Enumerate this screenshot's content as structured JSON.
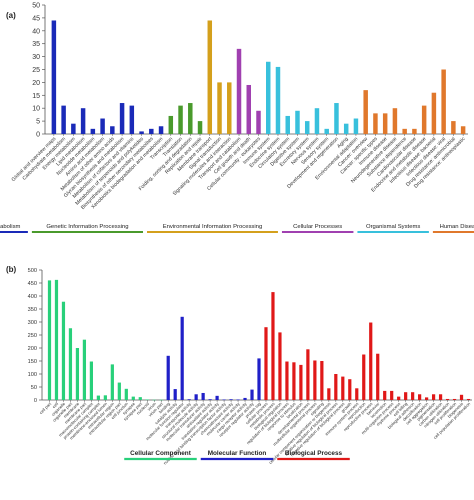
{
  "chart_data": [
    {
      "panel_label": "(a)",
      "type": "bar",
      "ylim": [
        0,
        50
      ],
      "yticks": [
        0,
        5,
        10,
        15,
        20,
        25,
        30,
        35,
        40,
        45,
        50
      ],
      "grid": false,
      "legend_position": "bottom",
      "groups": [
        {
          "name": "Metabolism",
          "color": "#1a2ab8",
          "items": [
            {
              "label": "Global and overview maps",
              "value": 44
            },
            {
              "label": "Carbohydrate metabolism",
              "value": 11
            },
            {
              "label": "Energy metabolism",
              "value": 4
            },
            {
              "label": "Lipid metabolism",
              "value": 10
            },
            {
              "label": "Nucleotide metabolism",
              "value": 2
            },
            {
              "label": "Amino acid metabolism",
              "value": 6
            },
            {
              "label": "Metabolism of other amino acids",
              "value": 3
            },
            {
              "label": "Glycan biosynthesis and metabolism",
              "value": 12
            },
            {
              "label": "Metabolism of cofactors and vitamins",
              "value": 11
            },
            {
              "label": "Metabolism of terpenoids and polyketides",
              "value": 1
            },
            {
              "label": "Biosynthesis of other secondary metabolites",
              "value": 2
            },
            {
              "label": "Xenobiotics biodegradation and metabolism",
              "value": 3
            }
          ]
        },
        {
          "name": "Genetic Information Processing",
          "color": "#4a9a2c",
          "items": [
            {
              "label": "Transcription",
              "value": 7
            },
            {
              "label": "Translation",
              "value": 11
            },
            {
              "label": "Folding, sorting and degradation",
              "value": 12
            },
            {
              "label": "Replication and repair",
              "value": 5
            }
          ]
        },
        {
          "name": "Environmental Information Processing",
          "color": "#d4a01c",
          "items": [
            {
              "label": "Membrane transport",
              "value": 44
            },
            {
              "label": "Signal transduction",
              "value": 20
            },
            {
              "label": "Signaling molecules and interaction",
              "value": 20
            }
          ]
        },
        {
          "name": "Cellular Processes",
          "color": "#a040b0",
          "items": [
            {
              "label": "Transport and catabolism",
              "value": 33
            },
            {
              "label": "Cell growth and death",
              "value": 19
            },
            {
              "label": "Cellular community - eukaryotes",
              "value": 9
            }
          ]
        },
        {
          "name": "Organismal Systems",
          "color": "#38c0dc",
          "items": [
            {
              "label": "Immune system",
              "value": 28
            },
            {
              "label": "Endocrine system",
              "value": 26
            },
            {
              "label": "Circulatory system",
              "value": 7
            },
            {
              "label": "Digestive system",
              "value": 9
            },
            {
              "label": "Excretory system",
              "value": 5
            },
            {
              "label": "Nervous system",
              "value": 10
            },
            {
              "label": "Sensory system",
              "value": 2
            },
            {
              "label": "Development and regeneration",
              "value": 12
            },
            {
              "label": "Aging",
              "value": 4
            },
            {
              "label": "Environmental adaptation",
              "value": 6
            }
          ]
        },
        {
          "name": "Human Diseases",
          "color": "#e0782c",
          "items": [
            {
              "label": "Cancer: overview",
              "value": 17
            },
            {
              "label": "Cancer: specific types",
              "value": 8
            },
            {
              "label": "Immune disease",
              "value": 8
            },
            {
              "label": "Neurodegenerative disease",
              "value": 10
            },
            {
              "label": "Substance dependence",
              "value": 2
            },
            {
              "label": "Cardiovascular disease",
              "value": 2
            },
            {
              "label": "Endocrine and metabolic disease",
              "value": 11
            },
            {
              "label": "Infectious disease: bacterial",
              "value": 16
            },
            {
              "label": "Infectious disease: viral",
              "value": 25
            },
            {
              "label": "Drug resistance: antimicrobial",
              "value": 5
            },
            {
              "label": "Drug resistance: antineoplastic",
              "value": 3
            }
          ]
        }
      ]
    },
    {
      "panel_label": "(b)",
      "type": "bar",
      "ylim": [
        0,
        500
      ],
      "yticks": [
        0,
        50,
        100,
        150,
        200,
        250,
        300,
        350,
        400,
        450,
        500
      ],
      "grid": false,
      "legend_position": "bottom",
      "groups": [
        {
          "name": "Cellular Component",
          "color": "#28d07a",
          "items": [
            {
              "label": "cell part",
              "value": 460
            },
            {
              "label": "cell",
              "value": 462
            },
            {
              "label": "organelle",
              "value": 378
            },
            {
              "label": "organelle part",
              "value": 276
            },
            {
              "label": "membrane",
              "value": 200
            },
            {
              "label": "membrane part",
              "value": 232
            },
            {
              "label": "macromolecular complex",
              "value": 148
            },
            {
              "label": "protein-containing complex",
              "value": 17
            },
            {
              "label": "membrane-enclosed lumen",
              "value": 18
            },
            {
              "label": "extracellular region",
              "value": 137
            },
            {
              "label": "extracellular region part",
              "value": 67
            },
            {
              "label": "cell junction",
              "value": 43
            },
            {
              "label": "synapse",
              "value": 13
            },
            {
              "label": "synapse part",
              "value": 11
            },
            {
              "label": "nucleoid",
              "value": 2
            },
            {
              "label": "virion",
              "value": 1
            },
            {
              "label": "virion part",
              "value": 1
            }
          ]
        },
        {
          "name": "Molecular Function",
          "color": "#2020c8",
          "items": [
            {
              "label": "binding",
              "value": 170
            },
            {
              "label": "catalytic activity",
              "value": 42
            },
            {
              "label": "molecular function regulator",
              "value": 320
            },
            {
              "label": "transporter activity",
              "value": 3
            },
            {
              "label": "structural molecule activity",
              "value": 22
            },
            {
              "label": "molecular transducer activity",
              "value": 27
            },
            {
              "label": "antioxidant activity",
              "value": 3
            },
            {
              "label": "translation regulator activity",
              "value": 16
            },
            {
              "label": "nucleic acid binding transcription factor activity",
              "value": 2
            },
            {
              "label": "chemoattractant activity",
              "value": 3
            },
            {
              "label": "molecular carrier activity",
              "value": 2
            },
            {
              "label": "cargo receptor activity",
              "value": 8
            },
            {
              "label": "receptor regulator activity",
              "value": 40
            },
            {
              "label": "protein tag",
              "value": 160
            }
          ]
        },
        {
          "name": "Biological Process",
          "color": "#e01818",
          "items": [
            {
              "label": "cellular process",
              "value": 280
            },
            {
              "label": "metabolic process",
              "value": 415
            },
            {
              "label": "biological regulation",
              "value": 260
            },
            {
              "label": "regulation of biological process",
              "value": 148
            },
            {
              "label": "response to stimulus",
              "value": 145
            },
            {
              "label": "localization",
              "value": 135
            },
            {
              "label": "developmental process",
              "value": 195
            },
            {
              "label": "multicellular organismal process",
              "value": 152
            },
            {
              "label": "signaling",
              "value": 150
            },
            {
              "label": "cellular component organization or biogenesis",
              "value": 45
            },
            {
              "label": "positive regulation of biological process",
              "value": 100
            },
            {
              "label": "negative regulation of biological process",
              "value": 90
            },
            {
              "label": "growth",
              "value": 80
            },
            {
              "label": "immune system process",
              "value": 45
            },
            {
              "label": "reproduction",
              "value": 175
            },
            {
              "label": "reproductive process",
              "value": 298
            },
            {
              "label": "behavior",
              "value": 178
            },
            {
              "label": "locomotion",
              "value": 35
            },
            {
              "label": "multi-organism process",
              "value": 35
            },
            {
              "label": "rhythmic process",
              "value": 13
            },
            {
              "label": "cell killing",
              "value": 30
            },
            {
              "label": "biological adhesion",
              "value": 30
            },
            {
              "label": "detoxification",
              "value": 22
            },
            {
              "label": "cell aggregation",
              "value": 10
            },
            {
              "label": "pigmentation",
              "value": 22
            },
            {
              "label": "carbon utilization",
              "value": 22
            },
            {
              "label": "nitrogen utilization",
              "value": 4
            },
            {
              "label": "cell proliferation",
              "value": 4
            },
            {
              "label": "biogenesis",
              "value": 20
            },
            {
              "label": "cell population proliferation",
              "value": 4
            }
          ]
        }
      ]
    }
  ]
}
